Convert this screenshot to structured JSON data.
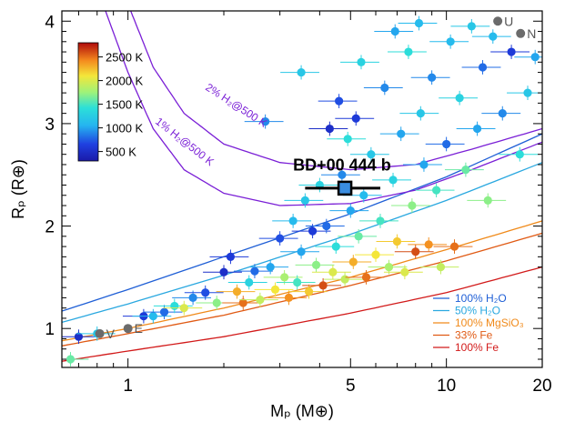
{
  "chart_data": {
    "type": "scatter",
    "xlabel": "Mₚ (M⊕)",
    "ylabel": "Rₚ (R⊕)",
    "xscale": "log",
    "xlim": [
      0.62,
      20
    ],
    "ylim": [
      0.62,
      4.1
    ],
    "xticks": [
      1,
      5,
      10,
      20
    ],
    "yticks": [
      1,
      2,
      3,
      4
    ],
    "colorbar": {
      "label_ticks": [
        "2500 K",
        "2000 K",
        "1500 K",
        "1000 K",
        "500 K"
      ],
      "values": [
        2500,
        2000,
        1500,
        1000,
        500
      ],
      "range": [
        300,
        2800
      ],
      "placement": "top-left"
    },
    "highlight": {
      "name": "BD+00 444 b",
      "mass": 4.8,
      "radius": 2.37,
      "mass_err": [
        3.6,
        6.2
      ],
      "radius_err": [
        2.3,
        2.44
      ]
    },
    "solar_system": [
      {
        "label": "V",
        "mass": 0.815,
        "radius": 0.95
      },
      {
        "label": "E",
        "mass": 1.0,
        "radius": 1.0
      },
      {
        "label": "U",
        "mass": 14.5,
        "radius": 4.0
      },
      {
        "label": "N",
        "mass": 17.1,
        "radius": 3.88
      }
    ],
    "composition_curves": [
      {
        "name": "100% H₂O",
        "color": "#1f5fd6",
        "x": [
          0.62,
          1,
          2,
          5,
          10,
          20
        ],
        "y": [
          1.17,
          1.38,
          1.7,
          2.12,
          2.48,
          2.9
        ]
      },
      {
        "name": "50% H₂O",
        "color": "#2aa8e0",
        "x": [
          0.62,
          1,
          2,
          5,
          10,
          20
        ],
        "y": [
          1.06,
          1.24,
          1.52,
          1.92,
          2.25,
          2.62
        ]
      },
      {
        "name": "100% MgSiO₃",
        "color": "#f08a1a",
        "x": [
          0.62,
          1,
          2,
          5,
          10,
          20
        ],
        "y": [
          0.88,
          1.0,
          1.2,
          1.5,
          1.77,
          2.05
        ]
      },
      {
        "name": "33% Fe",
        "color": "#e05a14",
        "x": [
          0.62,
          1,
          2,
          5,
          10,
          20
        ],
        "y": [
          0.83,
          0.95,
          1.13,
          1.42,
          1.66,
          1.93
        ]
      },
      {
        "name": "100% Fe",
        "color": "#d21a1a",
        "x": [
          0.62,
          1,
          2,
          5,
          10,
          20
        ],
        "y": [
          0.68,
          0.78,
          0.92,
          1.15,
          1.35,
          1.6
        ]
      }
    ],
    "h2_curves": [
      {
        "name": "2% H₂@500 K",
        "color": "#7a1fd6",
        "x": [
          1.02,
          1.2,
          1.5,
          2,
          3,
          5,
          8,
          12,
          20
        ],
        "y": [
          4.1,
          3.55,
          3.1,
          2.8,
          2.62,
          2.55,
          2.6,
          2.75,
          2.95
        ]
      },
      {
        "name": "1% H₂@500 K",
        "color": "#7a1fd6",
        "x": [
          0.85,
          1,
          1.2,
          1.5,
          2,
          3,
          5,
          8,
          12,
          20
        ],
        "y": [
          4.1,
          3.5,
          2.95,
          2.55,
          2.32,
          2.2,
          2.22,
          2.35,
          2.55,
          2.82
        ]
      }
    ],
    "series": [
      {
        "name": "",
        "points": [
          {
            "x": 0.7,
            "y": 0.92,
            "t": 500
          },
          {
            "x": 0.8,
            "y": 0.95,
            "t": 1200
          },
          {
            "x": 0.66,
            "y": 0.7,
            "t": 1600
          },
          {
            "x": 1.12,
            "y": 1.12,
            "t": 600
          },
          {
            "x": 1.2,
            "y": 1.12,
            "t": 1100
          },
          {
            "x": 1.3,
            "y": 1.16,
            "t": 800
          },
          {
            "x": 1.4,
            "y": 1.22,
            "t": 1400
          },
          {
            "x": 1.5,
            "y": 1.2,
            "t": 2000
          },
          {
            "x": 1.6,
            "y": 1.3,
            "t": 900
          },
          {
            "x": 1.75,
            "y": 1.35,
            "t": 700
          },
          {
            "x": 1.9,
            "y": 1.25,
            "t": 1700
          },
          {
            "x": 2.0,
            "y": 1.55,
            "t": 500
          },
          {
            "x": 2.1,
            "y": 1.7,
            "t": 600
          },
          {
            "x": 2.2,
            "y": 1.36,
            "t": 2300
          },
          {
            "x": 2.3,
            "y": 1.25,
            "t": 2500
          },
          {
            "x": 2.4,
            "y": 1.45,
            "t": 1300
          },
          {
            "x": 2.5,
            "y": 1.56,
            "t": 800
          },
          {
            "x": 2.6,
            "y": 1.28,
            "t": 1900
          },
          {
            "x": 2.7,
            "y": 3.02,
            "t": 900
          },
          {
            "x": 2.8,
            "y": 1.6,
            "t": 1000
          },
          {
            "x": 2.9,
            "y": 1.38,
            "t": 2100
          },
          {
            "x": 3.0,
            "y": 1.88,
            "t": 700
          },
          {
            "x": 3.1,
            "y": 1.5,
            "t": 1800
          },
          {
            "x": 3.2,
            "y": 1.3,
            "t": 2400
          },
          {
            "x": 3.3,
            "y": 2.05,
            "t": 1100
          },
          {
            "x": 3.4,
            "y": 1.45,
            "t": 1500
          },
          {
            "x": 3.5,
            "y": 1.75,
            "t": 1000
          },
          {
            "x": 3.6,
            "y": 2.25,
            "t": 1200
          },
          {
            "x": 3.7,
            "y": 1.36,
            "t": 2200
          },
          {
            "x": 3.8,
            "y": 1.95,
            "t": 600
          },
          {
            "x": 3.9,
            "y": 1.62,
            "t": 1700
          },
          {
            "x": 4.0,
            "y": 2.4,
            "t": 1300
          },
          {
            "x": 4.1,
            "y": 1.42,
            "t": 2600
          },
          {
            "x": 4.2,
            "y": 2.0,
            "t": 800
          },
          {
            "x": 4.3,
            "y": 2.95,
            "t": 500
          },
          {
            "x": 4.4,
            "y": 1.55,
            "t": 2000
          },
          {
            "x": 4.5,
            "y": 1.8,
            "t": 1400
          },
          {
            "x": 4.6,
            "y": 3.22,
            "t": 700
          },
          {
            "x": 4.7,
            "y": 2.5,
            "t": 900
          },
          {
            "x": 4.8,
            "y": 1.48,
            "t": 1900
          },
          {
            "x": 5.0,
            "y": 2.15,
            "t": 1000
          },
          {
            "x": 5.1,
            "y": 1.65,
            "t": 2300
          },
          {
            "x": 5.2,
            "y": 3.05,
            "t": 600
          },
          {
            "x": 5.3,
            "y": 1.9,
            "t": 1600
          },
          {
            "x": 5.5,
            "y": 2.3,
            "t": 1100
          },
          {
            "x": 5.6,
            "y": 1.5,
            "t": 2500
          },
          {
            "x": 5.8,
            "y": 2.7,
            "t": 1200
          },
          {
            "x": 6.0,
            "y": 1.72,
            "t": 2100
          },
          {
            "x": 6.2,
            "y": 2.05,
            "t": 1500
          },
          {
            "x": 6.4,
            "y": 3.35,
            "t": 900
          },
          {
            "x": 6.6,
            "y": 1.6,
            "t": 1800
          },
          {
            "x": 6.8,
            "y": 2.45,
            "t": 1300
          },
          {
            "x": 7.0,
            "y": 1.85,
            "t": 2200
          },
          {
            "x": 7.2,
            "y": 2.9,
            "t": 1000
          },
          {
            "x": 7.4,
            "y": 1.55,
            "t": 2000
          },
          {
            "x": 7.6,
            "y": 3.7,
            "t": 1400
          },
          {
            "x": 7.8,
            "y": 2.2,
            "t": 1700
          },
          {
            "x": 8.0,
            "y": 1.75,
            "t": 2600
          },
          {
            "x": 8.3,
            "y": 3.1,
            "t": 1200
          },
          {
            "x": 8.5,
            "y": 2.6,
            "t": 1000
          },
          {
            "x": 8.8,
            "y": 1.82,
            "t": 2400
          },
          {
            "x": 9.0,
            "y": 3.45,
            "t": 900
          },
          {
            "x": 9.3,
            "y": 2.35,
            "t": 1500
          },
          {
            "x": 9.6,
            "y": 1.6,
            "t": 1900
          },
          {
            "x": 10.0,
            "y": 2.8,
            "t": 800
          },
          {
            "x": 10.3,
            "y": 3.8,
            "t": 1100
          },
          {
            "x": 10.6,
            "y": 1.8,
            "t": 2500
          },
          {
            "x": 11.0,
            "y": 3.25,
            "t": 1300
          },
          {
            "x": 11.5,
            "y": 2.55,
            "t": 1600
          },
          {
            "x": 12.0,
            "y": 3.95,
            "t": 1200
          },
          {
            "x": 12.5,
            "y": 2.95,
            "t": 1000
          },
          {
            "x": 13.0,
            "y": 3.55,
            "t": 800
          },
          {
            "x": 13.5,
            "y": 2.25,
            "t": 1700
          },
          {
            "x": 14.0,
            "y": 3.85,
            "t": 1100
          },
          {
            "x": 15.0,
            "y": 3.1,
            "t": 900
          },
          {
            "x": 16.0,
            "y": 3.7,
            "t": 600
          },
          {
            "x": 17.0,
            "y": 2.7,
            "t": 1400
          },
          {
            "x": 18.0,
            "y": 3.3,
            "t": 1200
          },
          {
            "x": 19.0,
            "y": 3.65,
            "t": 1000
          },
          {
            "x": 5.4,
            "y": 3.6,
            "t": 1300
          },
          {
            "x": 6.9,
            "y": 3.9,
            "t": 1000
          },
          {
            "x": 8.2,
            "y": 3.98,
            "t": 1100
          },
          {
            "x": 3.5,
            "y": 3.5,
            "t": 1200
          },
          {
            "x": 4.9,
            "y": 2.85,
            "t": 1400
          }
        ]
      }
    ]
  }
}
